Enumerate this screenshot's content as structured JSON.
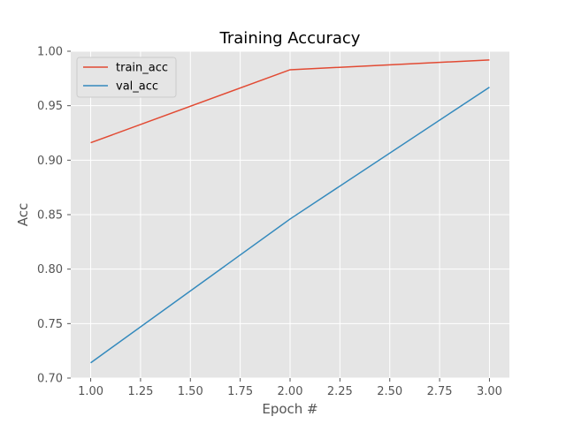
{
  "chart_data": {
    "type": "line",
    "title": "Training Accuracy",
    "xlabel": "Epoch #",
    "ylabel": "Acc",
    "xlim": [
      0.9,
      3.1
    ],
    "ylim": [
      0.7,
      1.0
    ],
    "xticks": [
      "1.00",
      "1.25",
      "1.50",
      "1.75",
      "2.00",
      "2.25",
      "2.50",
      "2.75",
      "3.00"
    ],
    "yticks": [
      "0.70",
      "0.75",
      "0.80",
      "0.85",
      "0.90",
      "0.95",
      "1.00"
    ],
    "grid": true,
    "legend_position": "top-left",
    "x": [
      1,
      2,
      3
    ],
    "series": [
      {
        "name": "train_acc",
        "color": "#E24A33",
        "values": [
          0.916,
          0.983,
          0.992
        ]
      },
      {
        "name": "val_acc",
        "color": "#348ABD",
        "values": [
          0.714,
          0.846,
          0.967
        ]
      }
    ]
  }
}
